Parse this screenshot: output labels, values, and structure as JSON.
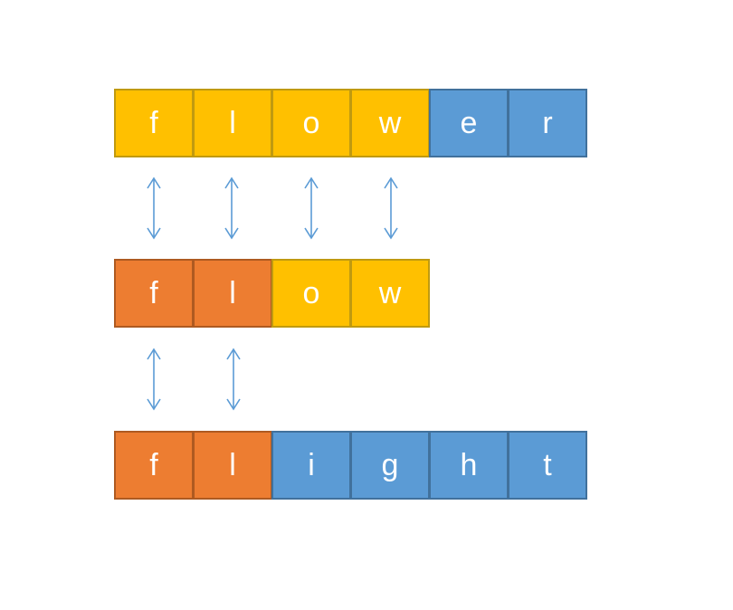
{
  "colors": {
    "common": "#FFC000",
    "differing": "#5B9BD5",
    "matched": "#ED7D31",
    "arrow": "#5B9BD5"
  },
  "words": [
    {
      "cells": [
        {
          "char": "f",
          "color": "yellow"
        },
        {
          "char": "l",
          "color": "yellow"
        },
        {
          "char": "o",
          "color": "yellow"
        },
        {
          "char": "w",
          "color": "yellow"
        },
        {
          "char": "e",
          "color": "blue"
        },
        {
          "char": "r",
          "color": "blue"
        }
      ]
    },
    {
      "cells": [
        {
          "char": "f",
          "color": "orange"
        },
        {
          "char": "l",
          "color": "orange"
        },
        {
          "char": "o",
          "color": "yellow"
        },
        {
          "char": "w",
          "color": "yellow"
        }
      ]
    },
    {
      "cells": [
        {
          "char": "f",
          "color": "orange"
        },
        {
          "char": "l",
          "color": "orange"
        },
        {
          "char": "i",
          "color": "blue"
        },
        {
          "char": "g",
          "color": "blue"
        },
        {
          "char": "h",
          "color": "blue"
        },
        {
          "char": "t",
          "color": "blue"
        }
      ]
    }
  ],
  "arrow_groups": [
    {
      "between": "word-1-word-2",
      "count": 4
    },
    {
      "between": "word-2-word-3",
      "count": 2
    }
  ]
}
